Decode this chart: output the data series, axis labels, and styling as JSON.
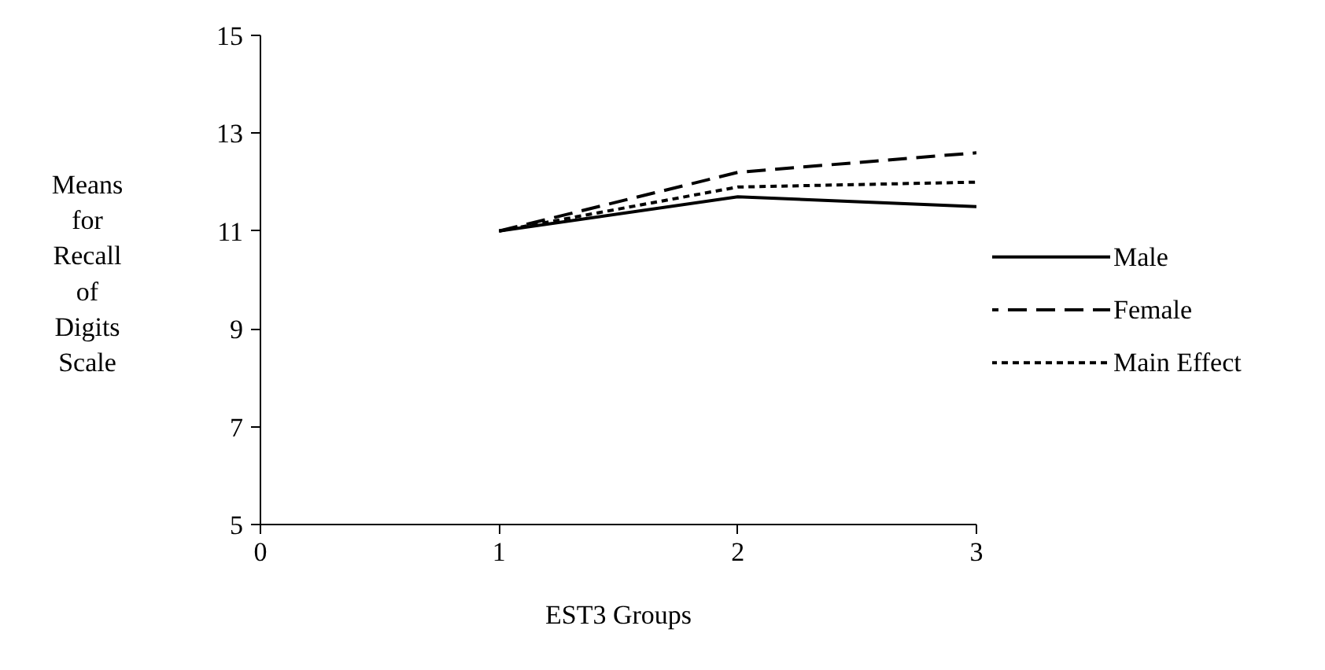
{
  "chart_data": {
    "type": "line",
    "xlabel": "EST3 Groups",
    "ylabel": "Means for Recall of Digits Scale",
    "x": [
      1,
      2,
      3
    ],
    "series": [
      {
        "name": "Male",
        "color": "#000000",
        "line_style": "solid",
        "values": [
          11.0,
          11.7,
          11.5
        ]
      },
      {
        "name": "Female",
        "color": "#000000",
        "line_style": "dashed",
        "values": [
          11.0,
          12.2,
          12.6
        ]
      },
      {
        "name": "Main Effect",
        "color": "#000000",
        "line_style": "dotted",
        "values": [
          11.0,
          11.9,
          12.0
        ]
      }
    ],
    "xlim": [
      0,
      3
    ],
    "ylim": [
      5,
      15
    ],
    "xticks": [
      0,
      1,
      2,
      3
    ],
    "yticks": [
      5,
      7,
      9,
      11,
      13,
      15
    ],
    "grid": false,
    "legend": "right",
    "marker": "none"
  }
}
